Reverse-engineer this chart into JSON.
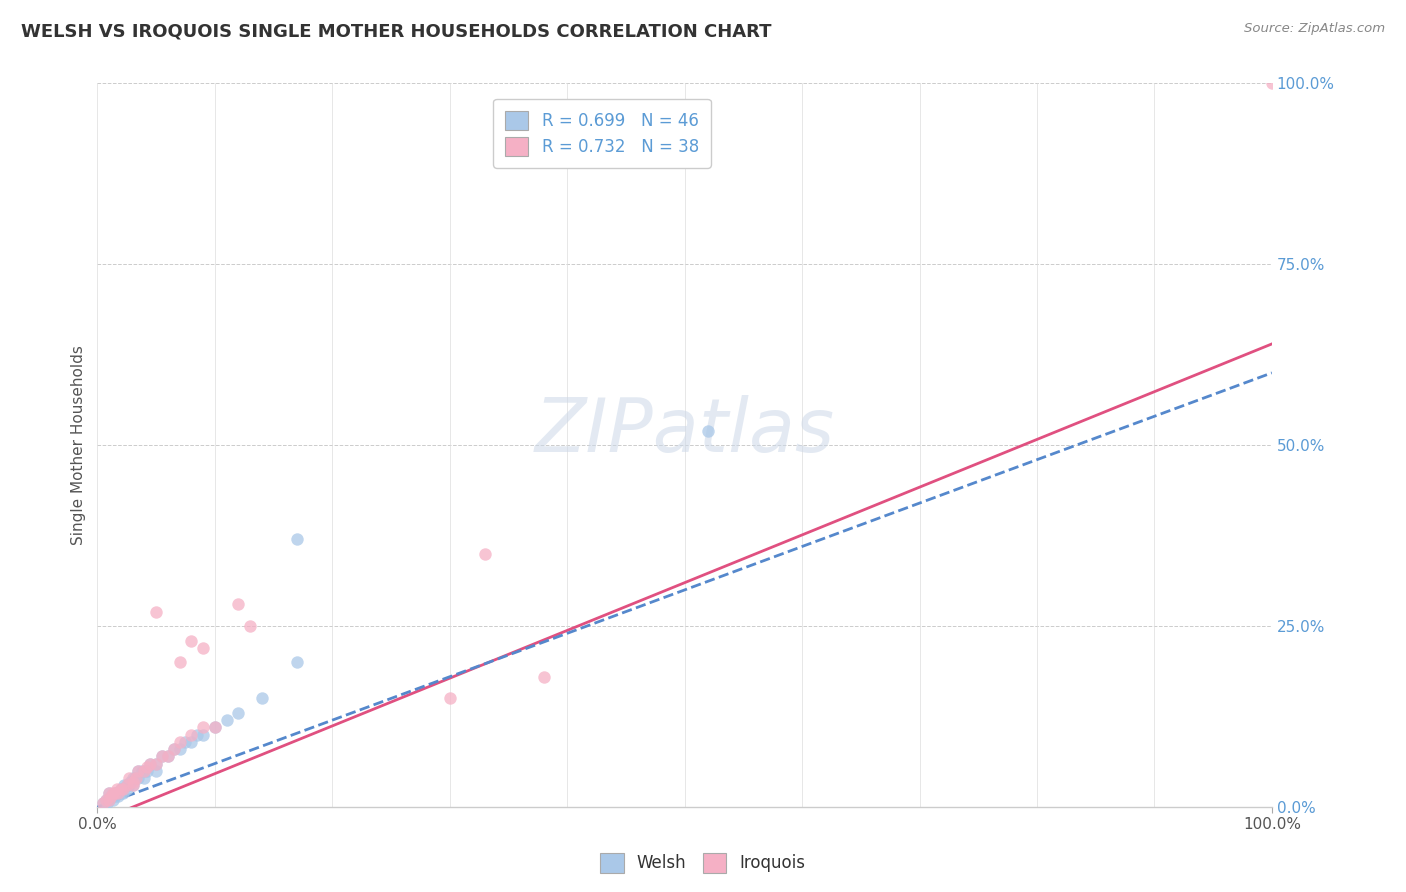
{
  "title": "WELSH VS IROQUOIS SINGLE MOTHER HOUSEHOLDS CORRELATION CHART",
  "source": "Source: ZipAtlas.com",
  "ylabel": "Single Mother Households",
  "xlim": [
    0.0,
    1.0
  ],
  "ylim": [
    0.0,
    1.0
  ],
  "ytick_positions": [
    0.0,
    0.25,
    0.5,
    0.75,
    1.0
  ],
  "ytick_labels": [
    "0.0%",
    "25.0%",
    "50.0%",
    "75.0%",
    "100.0%"
  ],
  "xtick_positions": [
    0.0,
    0.1,
    0.2,
    0.3,
    0.4,
    0.5,
    0.6,
    0.7,
    0.8,
    0.9,
    1.0
  ],
  "welsh_R": "0.699",
  "welsh_N": "46",
  "iroquois_R": "0.732",
  "iroquois_N": "38",
  "welsh_color": "#aac8e8",
  "iroquois_color": "#f5b0c5",
  "welsh_line_color": "#5588cc",
  "iroquois_line_color": "#e05080",
  "watermark": "ZIPatlas",
  "welsh_line": [
    0.0,
    0.0,
    1.0,
    0.6
  ],
  "iroquois_line": [
    0.0,
    -0.02,
    1.0,
    0.64
  ],
  "welsh_scatter": [
    [
      0.005,
      0.005
    ],
    [
      0.007,
      0.01
    ],
    [
      0.008,
      0.005
    ],
    [
      0.01,
      0.01
    ],
    [
      0.01,
      0.02
    ],
    [
      0.012,
      0.015
    ],
    [
      0.013,
      0.01
    ],
    [
      0.015,
      0.02
    ],
    [
      0.015,
      0.015
    ],
    [
      0.017,
      0.02
    ],
    [
      0.018,
      0.015
    ],
    [
      0.02,
      0.02
    ],
    [
      0.02,
      0.025
    ],
    [
      0.022,
      0.02
    ],
    [
      0.023,
      0.03
    ],
    [
      0.025,
      0.025
    ],
    [
      0.025,
      0.03
    ],
    [
      0.027,
      0.03
    ],
    [
      0.028,
      0.035
    ],
    [
      0.03,
      0.03
    ],
    [
      0.03,
      0.04
    ],
    [
      0.032,
      0.04
    ],
    [
      0.035,
      0.04
    ],
    [
      0.035,
      0.05
    ],
    [
      0.038,
      0.05
    ],
    [
      0.04,
      0.04
    ],
    [
      0.04,
      0.05
    ],
    [
      0.042,
      0.05
    ],
    [
      0.045,
      0.06
    ],
    [
      0.05,
      0.05
    ],
    [
      0.05,
      0.06
    ],
    [
      0.055,
      0.07
    ],
    [
      0.06,
      0.07
    ],
    [
      0.065,
      0.08
    ],
    [
      0.07,
      0.08
    ],
    [
      0.075,
      0.09
    ],
    [
      0.08,
      0.09
    ],
    [
      0.085,
      0.1
    ],
    [
      0.09,
      0.1
    ],
    [
      0.1,
      0.11
    ],
    [
      0.11,
      0.12
    ],
    [
      0.12,
      0.13
    ],
    [
      0.14,
      0.15
    ],
    [
      0.17,
      0.37
    ],
    [
      0.52,
      0.52
    ],
    [
      0.17,
      0.2
    ]
  ],
  "iroquois_scatter": [
    [
      0.005,
      0.005
    ],
    [
      0.007,
      0.01
    ],
    [
      0.01,
      0.01
    ],
    [
      0.01,
      0.02
    ],
    [
      0.012,
      0.015
    ],
    [
      0.013,
      0.02
    ],
    [
      0.015,
      0.02
    ],
    [
      0.017,
      0.025
    ],
    [
      0.018,
      0.02
    ],
    [
      0.02,
      0.025
    ],
    [
      0.022,
      0.025
    ],
    [
      0.025,
      0.03
    ],
    [
      0.027,
      0.04
    ],
    [
      0.03,
      0.03
    ],
    [
      0.03,
      0.035
    ],
    [
      0.033,
      0.04
    ],
    [
      0.035,
      0.05
    ],
    [
      0.04,
      0.05
    ],
    [
      0.042,
      0.055
    ],
    [
      0.045,
      0.06
    ],
    [
      0.05,
      0.06
    ],
    [
      0.055,
      0.07
    ],
    [
      0.06,
      0.07
    ],
    [
      0.065,
      0.08
    ],
    [
      0.07,
      0.09
    ],
    [
      0.08,
      0.1
    ],
    [
      0.09,
      0.11
    ],
    [
      0.1,
      0.11
    ],
    [
      0.05,
      0.27
    ],
    [
      0.12,
      0.28
    ],
    [
      0.13,
      0.25
    ],
    [
      0.3,
      0.15
    ],
    [
      0.38,
      0.18
    ],
    [
      0.33,
      0.35
    ],
    [
      0.07,
      0.2
    ],
    [
      0.08,
      0.23
    ],
    [
      0.09,
      0.22
    ],
    [
      1.0,
      1.0
    ]
  ]
}
